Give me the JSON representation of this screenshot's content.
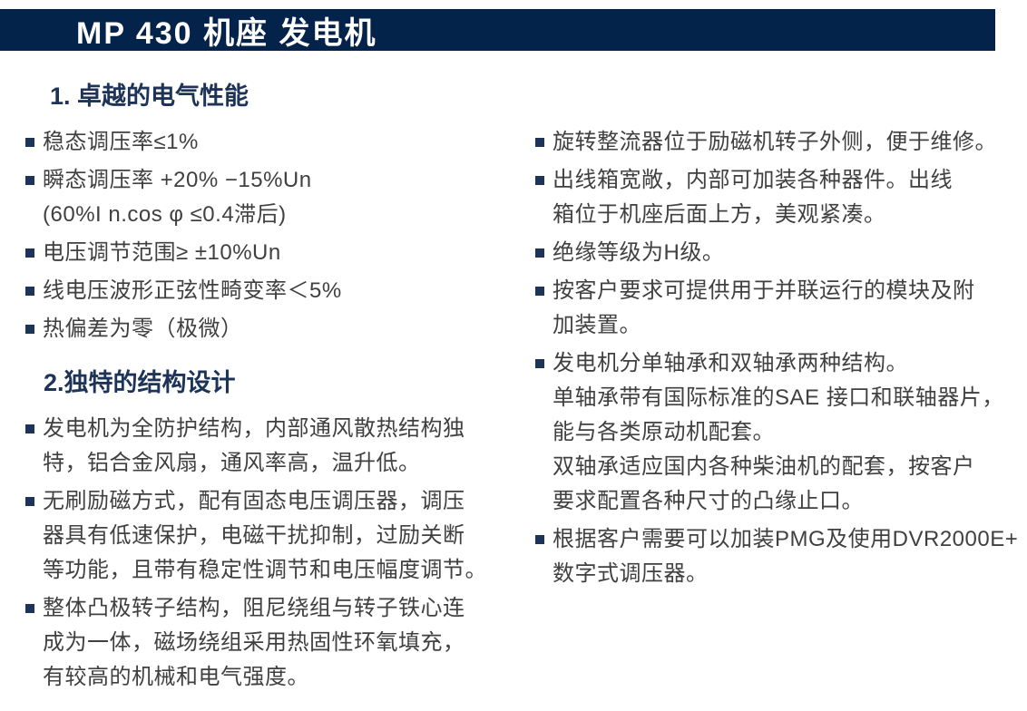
{
  "colors": {
    "header_bg": "#03234a",
    "header_text": "#ffffff",
    "accent_navy": "#1d3357",
    "body_text": "#404040",
    "page_bg": "#ffffff"
  },
  "header": {
    "title": "MP 430 机座 发电机"
  },
  "left_column": {
    "section1": {
      "heading": "1. 卓越的电气性能",
      "items": [
        {
          "text": "稳态调压率≤1%"
        },
        {
          "text": "瞬态调压率 +20% −15%Un\n(60%I n.cos φ ≤0.4滞后)"
        },
        {
          "text": "电压调节范围≥ ±10%Un"
        },
        {
          "text": "线电压波形正弦性畸变率＜5%"
        },
        {
          "text": "热偏差为零（极微）"
        }
      ]
    },
    "section2": {
      "heading": "2.独特的结构设计",
      "items": [
        {
          "text": "发电机为全防护结构，内部通风散热结构独\n特，铝合金风扇，通风率高，温升低。"
        },
        {
          "text": "无刷励磁方式，配有固态电压调压器，调压\n器具有低速保护，电磁干扰抑制，过励关断\n等功能，且带有稳定性调节和电压幅度调节。"
        },
        {
          "text": "整体凸极转子结构，阻尼绕组与转子铁心连\n成为一体，磁场绕组采用热固性环氧填充，\n有较高的机械和电气强度。"
        }
      ]
    }
  },
  "right_column": {
    "items": [
      {
        "text": "旋转整流器位于励磁机转子外侧，便于维修。"
      },
      {
        "text": "出线箱宽敞，内部可加装各种器件。出线\n箱位于机座后面上方，美观紧凑。"
      },
      {
        "text": "绝缘等级为H级。"
      },
      {
        "text": "按客户要求可提供用于并联运行的模块及附\n加装置。"
      },
      {
        "text": "发电机分单轴承和双轴承两种结构。\n单轴承带有国际标准的SAE 接口和联轴器片，\n能与各类原动机配套。\n双轴承适应国内各种柴油机的配套，按客户\n要求配置各种尺寸的凸缘止口。"
      },
      {
        "text": "根据客户需要可以加装PMG及使用DVR2000E+\n数字式调压器。"
      }
    ]
  }
}
